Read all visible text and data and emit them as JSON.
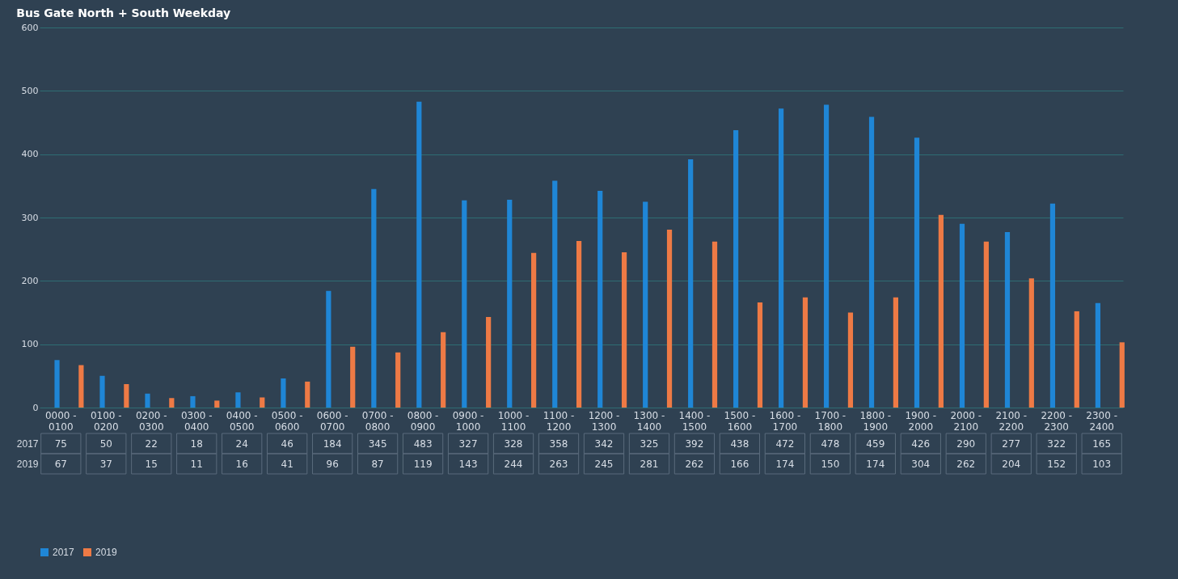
{
  "chart_data": {
    "type": "bar",
    "title": "Bus Gate North + South Weekday",
    "categories": [
      "0000 - 0100",
      "0100 - 0200",
      "0200 - 0300",
      "0300 - 0400",
      "0400 - 0500",
      "0500 - 0600",
      "0600 - 0700",
      "0700 - 0800",
      "0800 - 0900",
      "0900 - 1000",
      "1000 - 1100",
      "1100 - 1200",
      "1200 - 1300",
      "1300 - 1400",
      "1400 - 1500",
      "1500 - 1600",
      "1600 - 1700",
      "1700 - 1800",
      "1800 - 1900",
      "1900 - 2000",
      "2000 - 2100",
      "2100 - 2200",
      "2200 - 2300",
      "2300 - 2400"
    ],
    "series": [
      {
        "name": "2017",
        "color": "#1f86d6",
        "values": [
          75,
          50,
          22,
          18,
          24,
          46,
          184,
          345,
          483,
          327,
          328,
          358,
          342,
          325,
          392,
          438,
          472,
          478,
          459,
          426,
          290,
          277,
          322,
          165
        ]
      },
      {
        "name": "2019",
        "color": "#ee7a45",
        "values": [
          67,
          37,
          15,
          11,
          16,
          41,
          96,
          87,
          119,
          143,
          244,
          263,
          245,
          281,
          262,
          166,
          174,
          150,
          174,
          304,
          262,
          204,
          152,
          103
        ]
      }
    ],
    "ylim": [
      0,
      600
    ],
    "yticks": [
      0,
      100,
      200,
      300,
      400,
      500,
      600
    ],
    "grid": "y",
    "legend": "bottom",
    "data_labels": true
  }
}
